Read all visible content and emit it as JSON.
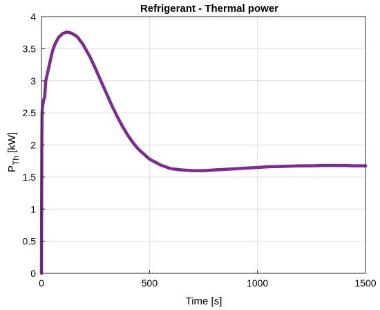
{
  "chart_data": {
    "type": "line",
    "title": "Refrigerant - Thermal power",
    "xlabel": "Time [s]",
    "ylabel_main": "P",
    "ylabel_sub": "Th",
    "ylabel_unit": "[kW]",
    "xlim": [
      0,
      1500
    ],
    "ylim": [
      0,
      4
    ],
    "xticks": [
      0,
      500,
      1000,
      1500
    ],
    "yticks": [
      0,
      0.5,
      1,
      1.5,
      2,
      2.5,
      3,
      3.5,
      4
    ],
    "xtick_labels": [
      "0",
      "500",
      "1000",
      "1500"
    ],
    "ytick_labels": [
      "0",
      "0.5",
      "1",
      "1.5",
      "2",
      "2.5",
      "3",
      "3.5",
      "4"
    ],
    "grid": true,
    "line_color": "#7B2D8E",
    "series": [
      {
        "x": [
          0,
          1,
          2,
          3,
          5,
          10,
          15,
          20,
          30,
          40,
          50,
          60,
          70,
          80,
          90,
          100,
          110,
          120,
          130,
          140,
          150,
          160,
          170,
          180,
          190,
          200,
          225,
          250,
          275,
          300,
          325,
          350,
          375,
          400,
          425,
          450,
          500,
          550,
          600,
          650,
          700,
          750,
          800,
          850,
          900,
          950,
          1000,
          1050,
          1100,
          1150,
          1200,
          1250,
          1300,
          1350,
          1400,
          1450,
          1500
        ],
        "y": [
          0,
          1.2,
          2.1,
          2.5,
          2.6,
          2.7,
          2.75,
          3.0,
          3.15,
          3.3,
          3.45,
          3.55,
          3.62,
          3.68,
          3.71,
          3.74,
          3.75,
          3.76,
          3.75,
          3.74,
          3.72,
          3.7,
          3.67,
          3.62,
          3.58,
          3.52,
          3.37,
          3.19,
          3.0,
          2.81,
          2.62,
          2.45,
          2.29,
          2.15,
          2.03,
          1.93,
          1.78,
          1.69,
          1.63,
          1.61,
          1.6,
          1.6,
          1.61,
          1.62,
          1.63,
          1.64,
          1.65,
          1.66,
          1.665,
          1.67,
          1.675,
          1.675,
          1.68,
          1.68,
          1.68,
          1.675,
          1.675
        ]
      }
    ]
  }
}
